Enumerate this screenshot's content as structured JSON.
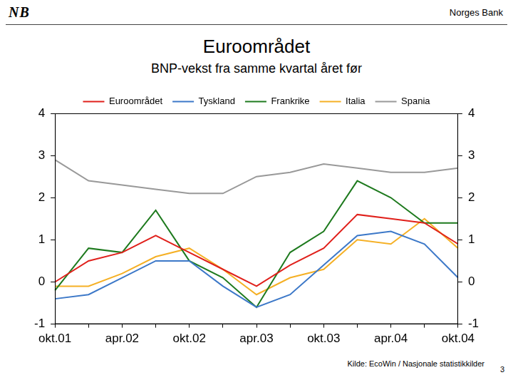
{
  "header": {
    "logo": "NB",
    "organization": "Norges Bank"
  },
  "footer": {
    "source": "Kilde: EcoWin / Nasjonale statistikkilder",
    "page": "3"
  },
  "chart_data": {
    "type": "line",
    "title": "Euroområdet",
    "subtitle": "BNP-vekst fra samme kvartal året før",
    "categories": [
      "okt.01",
      null,
      "apr.02",
      null,
      "okt.02",
      null,
      "apr.03",
      null,
      "okt.03",
      null,
      "apr.04",
      null,
      "okt.04"
    ],
    "series": [
      {
        "name": "Euroområdet",
        "color": "#e0201b",
        "values": [
          0.0,
          0.5,
          0.7,
          1.1,
          0.7,
          0.3,
          -0.1,
          0.4,
          0.8,
          1.6,
          1.5,
          1.4,
          0.9
        ]
      },
      {
        "name": "Tyskland",
        "color": "#3c78c8",
        "values": [
          -0.4,
          -0.3,
          0.1,
          0.5,
          0.5,
          -0.1,
          -0.6,
          -0.3,
          0.4,
          1.1,
          1.2,
          0.9,
          0.1
        ]
      },
      {
        "name": "Frankrike",
        "color": "#1e7a1e",
        "values": [
          -0.2,
          0.8,
          0.7,
          1.7,
          0.5,
          0.1,
          -0.6,
          0.7,
          1.2,
          2.4,
          2.0,
          1.4,
          1.4
        ]
      },
      {
        "name": "Italia",
        "color": "#f5b025",
        "values": [
          -0.1,
          -0.1,
          0.2,
          0.6,
          0.8,
          0.3,
          -0.3,
          0.1,
          0.3,
          1.0,
          0.9,
          1.5,
          0.8
        ]
      },
      {
        "name": "Spania",
        "color": "#999999",
        "values": [
          2.9,
          2.4,
          2.3,
          2.2,
          2.1,
          2.1,
          2.5,
          2.6,
          2.8,
          2.7,
          2.6,
          2.6,
          2.7
        ]
      }
    ],
    "ylim": [
      -1,
      4
    ],
    "yticks": [
      -1,
      0,
      1,
      2,
      3,
      4
    ],
    "y2lim": [
      -1,
      4
    ],
    "y2ticks": [
      -1,
      0,
      1,
      2,
      3,
      4
    ],
    "grid": false,
    "legend": "top"
  }
}
